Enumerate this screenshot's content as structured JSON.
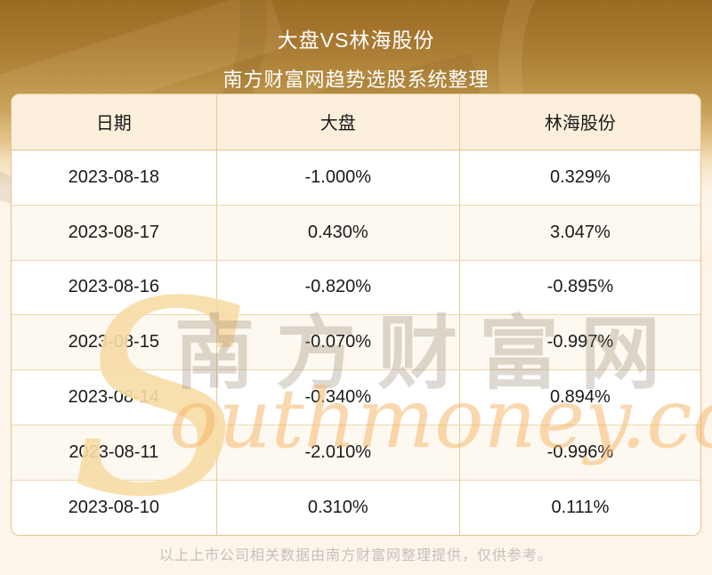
{
  "header": {
    "title": "大盘VS林海股份",
    "subtitle": "南方财富网趋势选股系统整理"
  },
  "table": {
    "columns": [
      "日期",
      "大盘",
      "林海股份"
    ],
    "rows": [
      [
        "2023-08-18",
        "-1.000%",
        "0.329%"
      ],
      [
        "2023-08-17",
        "0.430%",
        "3.047%"
      ],
      [
        "2023-08-16",
        "-0.820%",
        "-0.895%"
      ],
      [
        "2023-08-15",
        "-0.070%",
        "-0.997%"
      ],
      [
        "2023-08-14",
        "-0.340%",
        "0.894%"
      ],
      [
        "2023-08-11",
        "-2.010%",
        "-0.996%"
      ],
      [
        "2023-08-10",
        "0.310%",
        "0.111%"
      ]
    ]
  },
  "watermark": {
    "initial": "S",
    "rest": "outhmoney.com",
    "cn": "南方财富网"
  },
  "footer": {
    "note": "以上上市公司相关数据由南方财富网整理提供，仅供参考。"
  },
  "colors": {
    "banner_gold_dark": "#9b6a23",
    "banner_gold_light": "#c59e55",
    "page_cream": "#fdf5ec",
    "header_row_bg": "#fcf0dd",
    "alt_row_bg": "#fdf8f0",
    "table_border": "#e6c18a",
    "cell_text": "#1a1a1a",
    "title_text": "#ffffff",
    "footer_text": "#c7c0b9",
    "watermark_gold": "#f8dca6",
    "watermark_orange": "#f6b260"
  },
  "chart_data": {
    "type": "table",
    "title": "大盘VS林海股份",
    "subtitle": "南方财富网趋势选股系统整理",
    "columns": [
      "日期",
      "大盘",
      "林海股份"
    ],
    "rows": [
      {
        "date": "2023-08-18",
        "market": -1.0,
        "stock": 0.329
      },
      {
        "date": "2023-08-17",
        "market": 0.43,
        "stock": 3.047
      },
      {
        "date": "2023-08-16",
        "market": -0.82,
        "stock": -0.895
      },
      {
        "date": "2023-08-15",
        "market": -0.07,
        "stock": -0.997
      },
      {
        "date": "2023-08-14",
        "market": -0.34,
        "stock": 0.894
      },
      {
        "date": "2023-08-11",
        "market": -2.01,
        "stock": -0.996
      },
      {
        "date": "2023-08-10",
        "market": 0.31,
        "stock": 0.111
      }
    ],
    "units": "percent",
    "note": "以上上市公司相关数据由南方财富网整理提供，仅供参考。"
  }
}
